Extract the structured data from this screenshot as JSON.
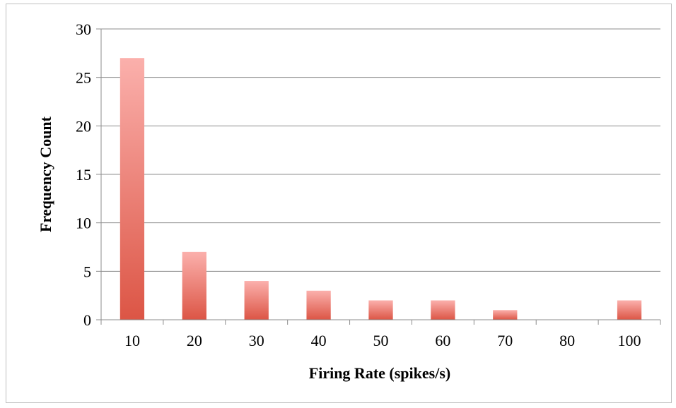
{
  "chart_data": {
    "type": "bar",
    "title": "",
    "xlabel": "Firing Rate (spikes/s)",
    "ylabel": "Frequency Count",
    "categories": [
      "10",
      "20",
      "30",
      "40",
      "50",
      "60",
      "70",
      "80",
      "100"
    ],
    "values": [
      27,
      7,
      4,
      3,
      2,
      2,
      1,
      0,
      2
    ],
    "ylim": [
      0,
      30
    ],
    "yticks": [
      0,
      5,
      10,
      15,
      20,
      25,
      30
    ],
    "grid": true,
    "legend": "none",
    "colors": {
      "bar_light": "#fbb0ac",
      "bar_dark": "#dc5545",
      "grid": "#8c8c8c",
      "axis": "#8c8c8c"
    }
  }
}
